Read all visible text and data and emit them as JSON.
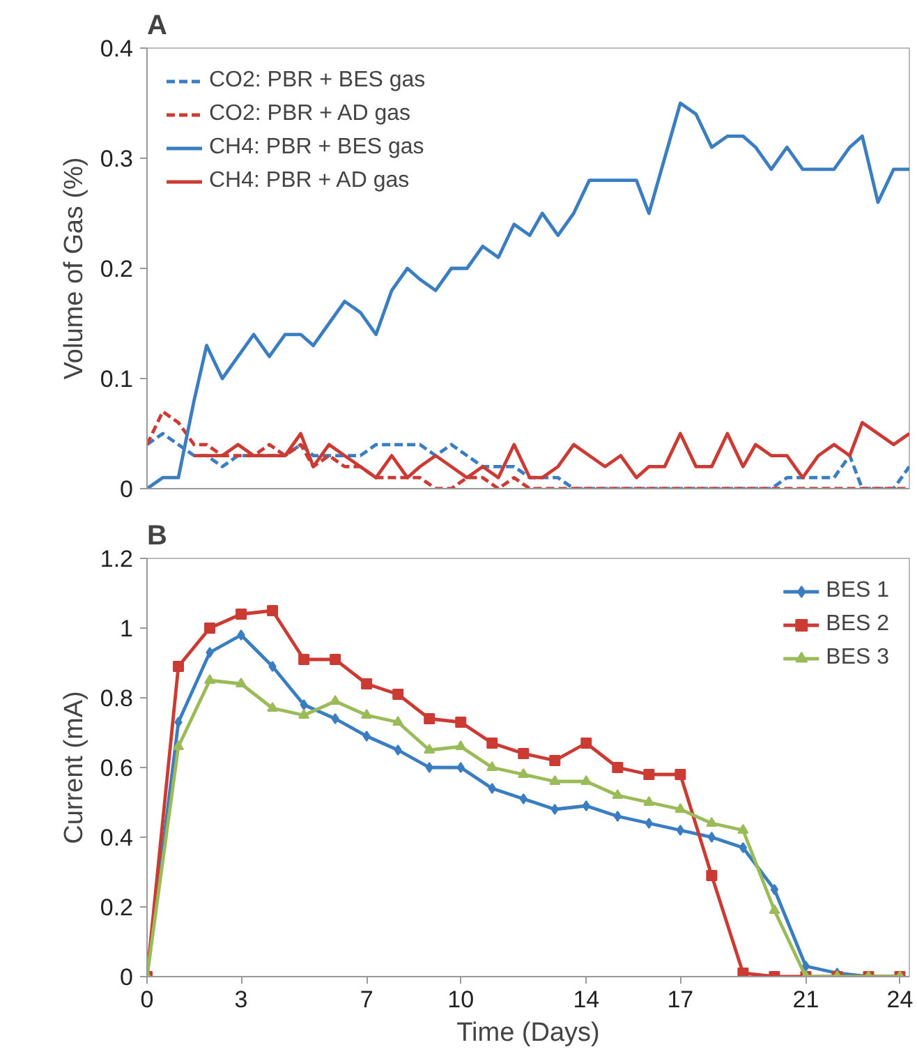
{
  "chart_data": [
    {
      "type": "line",
      "title": "A",
      "ylabel": "Volume of Gas (%)",
      "xlim": [
        0,
        24.3
      ],
      "ylim": [
        0,
        0.4
      ],
      "yticks": [
        0,
        0.1,
        0.2,
        0.3,
        0.4
      ],
      "tick_labels": "y",
      "grid": false,
      "legend": "top left",
      "marker": "none",
      "x": [
        0,
        0.5,
        1,
        1.5,
        1.9,
        2.4,
        2.9,
        3.4,
        3.9,
        4.4,
        4.9,
        5.3,
        5.8,
        6.3,
        6.8,
        7.3,
        7.8,
        8.3,
        8.7,
        9.2,
        9.7,
        10.2,
        10.7,
        11.2,
        11.7,
        12.2,
        12.6,
        13.1,
        13.6,
        14.1,
        14.6,
        15.1,
        15.6,
        16,
        16.5,
        17,
        17.5,
        18,
        18.5,
        19,
        19.4,
        19.9,
        20.4,
        20.9,
        21.4,
        21.9,
        22.4,
        22.8,
        23.3,
        23.8,
        24.3
      ],
      "series": [
        {
          "name": "CO2: PBR + BES gas",
          "color": "#3a7dc1",
          "line_style": "dashed",
          "values": [
            0.04,
            0.05,
            0.04,
            0.03,
            0.03,
            0.02,
            0.03,
            0.03,
            0.03,
            0.03,
            0.04,
            0.03,
            0.03,
            0.03,
            0.03,
            0.04,
            0.04,
            0.04,
            0.04,
            0.03,
            0.04,
            0.03,
            0.02,
            0.02,
            0.02,
            0.01,
            0.01,
            0.01,
            0,
            0,
            0,
            0,
            0,
            0,
            0,
            0,
            0,
            0,
            0,
            0,
            0,
            0,
            0.01,
            0.01,
            0.01,
            0.01,
            0.03,
            0,
            0,
            0,
            0.02
          ]
        },
        {
          "name": "CO2: PBR + AD gas",
          "color": "#cc3b33",
          "line_style": "dashed",
          "values": [
            0.04,
            0.07,
            0.06,
            0.04,
            0.04,
            0.03,
            0.03,
            0.03,
            0.04,
            0.03,
            0.04,
            0.02,
            0.03,
            0.02,
            0.02,
            0.01,
            0.01,
            0.01,
            0.01,
            0,
            0,
            0.01,
            0.01,
            0,
            0.01,
            0,
            0,
            0,
            0,
            0,
            0,
            0,
            0,
            0,
            0,
            0,
            0,
            0,
            0,
            0,
            0,
            0,
            0,
            0,
            0,
            0,
            0,
            0,
            0,
            0,
            0
          ]
        },
        {
          "name": "CH4: PBR + BES gas",
          "color": "#3a7dc1",
          "line_style": "solid",
          "values": [
            0,
            0.01,
            0.01,
            0.08,
            0.13,
            0.1,
            0.12,
            0.14,
            0.12,
            0.14,
            0.14,
            0.13,
            0.15,
            0.17,
            0.16,
            0.14,
            0.18,
            0.2,
            0.19,
            0.18,
            0.2,
            0.2,
            0.22,
            0.21,
            0.24,
            0.23,
            0.25,
            0.23,
            0.25,
            0.28,
            0.28,
            0.28,
            0.28,
            0.25,
            0.3,
            0.35,
            0.34,
            0.31,
            0.32,
            0.32,
            0.31,
            0.29,
            0.31,
            0.29,
            0.29,
            0.29,
            0.31,
            0.32,
            0.26,
            0.29,
            0.29
          ]
        },
        {
          "name": "CH4: PBR + AD gas",
          "color": "#cc3b33",
          "line_style": "solid",
          "values": [
            null,
            null,
            null,
            0.03,
            0.03,
            0.03,
            0.04,
            0.03,
            0.03,
            0.03,
            0.05,
            0.02,
            0.04,
            0.03,
            0.02,
            0.01,
            0.03,
            0.01,
            0.02,
            0.03,
            0.02,
            0.01,
            0.02,
            0.01,
            0.04,
            0.01,
            0.01,
            0.02,
            0.04,
            0.03,
            0.02,
            0.03,
            0.01,
            0.02,
            0.02,
            0.05,
            0.02,
            0.02,
            0.05,
            0.02,
            0.04,
            0.03,
            0.03,
            0.01,
            0.03,
            0.04,
            0.03,
            0.06,
            0.05,
            0.04,
            0.05
          ]
        }
      ]
    },
    {
      "type": "line",
      "title": "B",
      "xlabel": "Time (Days)",
      "ylabel": "Current (mA)",
      "xlim": [
        0,
        24.3
      ],
      "ylim": [
        0,
        1.2
      ],
      "xticks": [
        0,
        3,
        7,
        10,
        14,
        17,
        21,
        24
      ],
      "yticks": [
        0,
        0.2,
        0.4,
        0.6,
        0.8,
        1,
        1.2
      ],
      "grid": false,
      "legend": "top right",
      "x": [
        0,
        1,
        2,
        3,
        4,
        5,
        6,
        7,
        8,
        9,
        10,
        11,
        12,
        13,
        14,
        15,
        16,
        17,
        18,
        19,
        20,
        21,
        22,
        23,
        24
      ],
      "series": [
        {
          "name": "BES 1",
          "color": "#3a7dc1",
          "marker": "diamond",
          "values": [
            0,
            0.73,
            0.93,
            0.98,
            0.89,
            0.78,
            0.74,
            0.69,
            0.65,
            0.6,
            0.6,
            0.54,
            0.51,
            0.48,
            0.49,
            0.46,
            0.44,
            0.42,
            0.4,
            0.37,
            0.25,
            0.03,
            0.01,
            0,
            0
          ]
        },
        {
          "name": "BES 2",
          "color": "#cc3b33",
          "marker": "square",
          "values": [
            0,
            0.89,
            1.0,
            1.04,
            1.05,
            0.91,
            0.91,
            0.84,
            0.81,
            0.74,
            0.73,
            0.67,
            0.64,
            0.62,
            0.67,
            0.6,
            0.58,
            0.58,
            0.29,
            0.01,
            0,
            0,
            0,
            0,
            0
          ]
        },
        {
          "name": "BES 3",
          "color": "#9bbb59",
          "marker": "triangle",
          "values": [
            0,
            0.66,
            0.85,
            0.84,
            0.77,
            0.75,
            0.79,
            0.75,
            0.73,
            0.65,
            0.66,
            0.6,
            0.58,
            0.56,
            0.56,
            0.52,
            0.5,
            0.48,
            0.44,
            0.42,
            0.19,
            0,
            0,
            0,
            0
          ]
        }
      ]
    }
  ]
}
